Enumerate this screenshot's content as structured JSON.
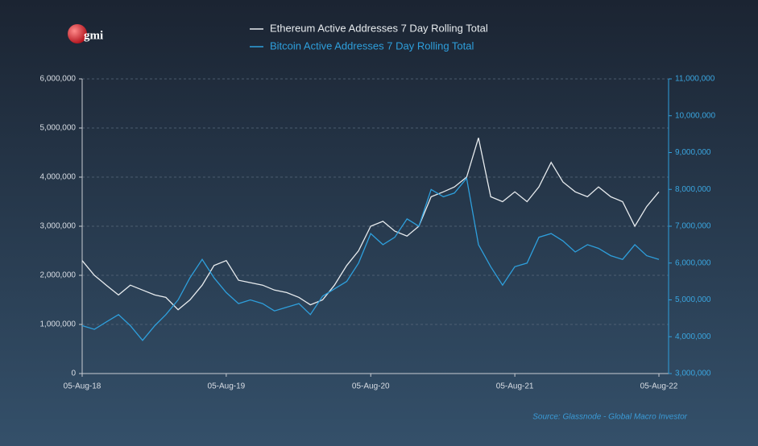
{
  "logo": "gmi",
  "source": "Source: Glassnode - Global Macro Investor",
  "chart_data": {
    "type": "line",
    "x": [
      "2018-08-05",
      "2018-09-05",
      "2018-10-05",
      "2018-11-05",
      "2018-12-05",
      "2019-01-05",
      "2019-02-05",
      "2019-03-05",
      "2019-04-05",
      "2019-05-05",
      "2019-06-05",
      "2019-07-05",
      "2019-08-05",
      "2019-09-05",
      "2019-10-05",
      "2019-11-05",
      "2019-12-05",
      "2020-01-05",
      "2020-02-05",
      "2020-03-05",
      "2020-04-05",
      "2020-05-05",
      "2020-06-05",
      "2020-07-05",
      "2020-08-05",
      "2020-09-05",
      "2020-10-05",
      "2020-11-05",
      "2020-12-05",
      "2021-01-05",
      "2021-02-05",
      "2021-03-05",
      "2021-04-05",
      "2021-05-05",
      "2021-06-05",
      "2021-07-05",
      "2021-08-05",
      "2021-09-05",
      "2021-10-05",
      "2021-11-05",
      "2021-12-05",
      "2022-01-05",
      "2022-02-05",
      "2022-03-05",
      "2022-04-05",
      "2022-05-05",
      "2022-06-05",
      "2022-07-05",
      "2022-08-05"
    ],
    "series": [
      {
        "name": "Ethereum Active Addresses 7 Day Rolling Total",
        "color": "#e8ecef",
        "values": [
          2300000,
          2000000,
          1800000,
          1600000,
          1800000,
          1700000,
          1600000,
          1550000,
          1300000,
          1500000,
          1800000,
          2200000,
          2300000,
          1900000,
          1850000,
          1800000,
          1700000,
          1650000,
          1550000,
          1400000,
          1500000,
          1800000,
          2200000,
          2500000,
          3000000,
          3100000,
          2900000,
          2800000,
          3000000,
          3600000,
          3700000,
          3800000,
          4000000,
          4800000,
          3600000,
          3500000,
          3700000,
          3500000,
          3800000,
          4300000,
          3900000,
          3700000,
          3600000,
          3800000,
          3600000,
          3500000,
          3000000,
          3400000,
          3700000
        ]
      },
      {
        "name": "Bitcoin Active Addresses 7 Day Rolling Total",
        "color": "#2e9fdc",
        "axis": "y2",
        "values": [
          4300000,
          4200000,
          4400000,
          4600000,
          4300000,
          3900000,
          4300000,
          4600000,
          5000000,
          5600000,
          6100000,
          5600000,
          5200000,
          4900000,
          5000000,
          4900000,
          4700000,
          4800000,
          4900000,
          4600000,
          5100000,
          5300000,
          5500000,
          6000000,
          6800000,
          6500000,
          6700000,
          7200000,
          7000000,
          8000000,
          7800000,
          7900000,
          8300000,
          6500000,
          5900000,
          5400000,
          5900000,
          6000000,
          6700000,
          6800000,
          6600000,
          6300000,
          6500000,
          6400000,
          6200000,
          6100000,
          6500000,
          6200000,
          6100000
        ]
      }
    ],
    "xlim": [
      "2018-08-05",
      "2022-08-05"
    ],
    "xticks": [
      {
        "value": "2018-08-05",
        "label": "05-Aug-18"
      },
      {
        "value": "2019-08-05",
        "label": "05-Aug-19"
      },
      {
        "value": "2020-08-05",
        "label": "05-Aug-20"
      },
      {
        "value": "2021-08-05",
        "label": "05-Aug-21"
      },
      {
        "value": "2022-08-05",
        "label": "05-Aug-22"
      }
    ],
    "ylim": [
      0,
      6000000
    ],
    "yticks": [
      0,
      {
        "value": 1000000,
        "label": "1,000,000"
      },
      {
        "value": 2000000,
        "label": "2,000,000"
      },
      {
        "value": 3000000,
        "label": "3,000,000"
      },
      {
        "value": 4000000,
        "label": "4,000,000"
      },
      {
        "value": 5000000,
        "label": "5,000,000"
      },
      {
        "value": 6000000,
        "label": "6,000,000"
      }
    ],
    "y2lim": [
      3000000,
      11000000
    ],
    "y2ticks": [
      {
        "value": 3000000,
        "label": "3,000,000"
      },
      {
        "value": 4000000,
        "label": "4,000,000"
      },
      {
        "value": 5000000,
        "label": "5,000,000"
      },
      {
        "value": 6000000,
        "label": "6,000,000"
      },
      {
        "value": 7000000,
        "label": "7,000,000"
      },
      {
        "value": 8000000,
        "label": "8,000,000"
      },
      {
        "value": 9000000,
        "label": "9,000,000"
      },
      {
        "value": 10000000,
        "label": "10,000,000"
      },
      {
        "value": 11000000,
        "label": "11,000,000"
      }
    ],
    "grid": true
  }
}
